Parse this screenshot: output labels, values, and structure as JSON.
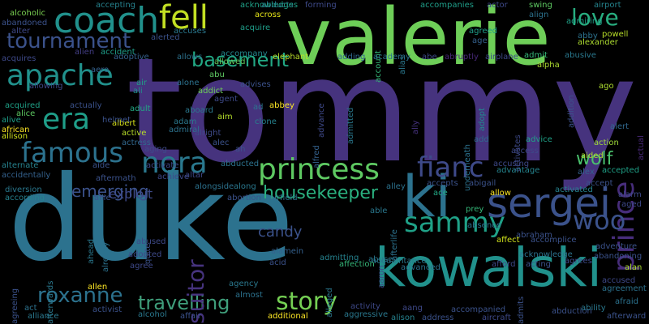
{
  "words": [
    {
      "text": "tommy",
      "color": "#46337e"
    },
    {
      "text": "duke",
      "color": "#2c728e"
    },
    {
      "text": "valerie",
      "color": "#6ece58"
    },
    {
      "text": "kowalski",
      "color": "#21918c"
    },
    {
      "text": "ki",
      "color": "#2c728e"
    },
    {
      "text": "sergei",
      "color": "#3b528b"
    },
    {
      "text": "coach",
      "color": "#21918c"
    },
    {
      "text": "fell",
      "color": "#c2df23"
    },
    {
      "text": "prince",
      "color": "#472d7b"
    },
    {
      "text": "princess",
      "color": "#5ec962"
    },
    {
      "text": "nora",
      "color": "#2a788e"
    },
    {
      "text": "fianc",
      "color": "#3e4a89"
    },
    {
      "text": "apache",
      "color": "#21918c"
    },
    {
      "text": "era",
      "color": "#1f9e89"
    },
    {
      "text": "famous",
      "color": "#2c728e"
    },
    {
      "text": "sammy",
      "color": "#1fa187"
    },
    {
      "text": "woo",
      "color": "#3b528b"
    },
    {
      "text": "tournament",
      "color": "#3b528b"
    },
    {
      "text": "love",
      "color": "#28ae80"
    },
    {
      "text": "basement",
      "color": "#22a884"
    },
    {
      "text": "roxanne",
      "color": "#2c728e"
    },
    {
      "text": "travelling",
      "color": "#3f9e7b"
    },
    {
      "text": "story",
      "color": "#75d054"
    },
    {
      "text": "suitor",
      "color": "#46337e"
    },
    {
      "text": "housekeeper",
      "color": "#2ab07f"
    },
    {
      "text": "wolf",
      "color": "#4ac16d"
    },
    {
      "text": "emerging",
      "color": "#3b528b"
    },
    {
      "text": "exploit",
      "color": "#3e4a89"
    },
    {
      "text": "candy",
      "color": "#3b528b"
    },
    {
      "text": "alcoholic",
      "color": "#7ad151"
    },
    {
      "text": "alien",
      "color": "#433e85"
    },
    {
      "text": "aero",
      "color": "#34618d"
    },
    {
      "text": "abducts",
      "color": "#2c728e"
    },
    {
      "text": "abandoned",
      "color": "#3b528b"
    },
    {
      "text": "alter",
      "color": "#3e4989"
    },
    {
      "text": "accepting",
      "color": "#26828e"
    },
    {
      "text": "acknowledges",
      "color": "#1fa187"
    },
    {
      "text": "forming",
      "color": "#3e4a89"
    },
    {
      "text": "across",
      "color": "#e5e419"
    },
    {
      "text": "account",
      "color": "#35b779"
    },
    {
      "text": "alias",
      "color": "#2a788e"
    },
    {
      "text": "accompanies",
      "color": "#1f9e89"
    },
    {
      "text": "actor",
      "color": "#3e4989"
    },
    {
      "text": "swing",
      "color": "#5ec962"
    },
    {
      "text": "align",
      "color": "#2c728e"
    },
    {
      "text": "airport",
      "color": "#25848e"
    },
    {
      "text": "admiring",
      "color": "#1fa187"
    },
    {
      "text": "powell",
      "color": "#b8de29"
    },
    {
      "text": "alexander",
      "color": "#addc30"
    },
    {
      "text": "abby",
      "color": "#2c728e"
    },
    {
      "text": "agreed",
      "color": "#1f9e89"
    },
    {
      "text": "age",
      "color": "#34618d"
    },
    {
      "text": "accuses",
      "color": "#2a788e"
    },
    {
      "text": "alerted",
      "color": "#3b528b"
    },
    {
      "text": "acquire",
      "color": "#1f9e89"
    },
    {
      "text": "allowed",
      "color": "#63cb5f"
    },
    {
      "text": "allows",
      "color": "#2c728e"
    },
    {
      "text": "accompany",
      "color": "#23898e"
    },
    {
      "text": "elephant",
      "color": "#b8de29"
    },
    {
      "text": "adding",
      "color": "#31688e"
    },
    {
      "text": "academy",
      "color": "#2c728e"
    },
    {
      "text": "abe",
      "color": "#3e4989"
    },
    {
      "text": "abruptly",
      "color": "#482878"
    },
    {
      "text": "airplane",
      "color": "#3e4989"
    },
    {
      "text": "admit",
      "color": "#35b779"
    },
    {
      "text": "abusive",
      "color": "#2a788e"
    },
    {
      "text": "alpha",
      "color": "#addc30"
    },
    {
      "text": "accident",
      "color": "#1f9e89"
    },
    {
      "text": "adoptive",
      "color": "#34618d"
    },
    {
      "text": "acquires",
      "color": "#3e4989"
    },
    {
      "text": "abu",
      "color": "#5ec962"
    },
    {
      "text": "addict",
      "color": "#6ece58"
    },
    {
      "text": "alone",
      "color": "#2c728e"
    },
    {
      "text": "advises",
      "color": "#3b528b"
    },
    {
      "text": "advance",
      "color": "#3e4989"
    },
    {
      "text": "admitted",
      "color": "#2a788e"
    },
    {
      "text": "ally",
      "color": "#46337e"
    },
    {
      "text": "adopt",
      "color": "#23898e"
    },
    {
      "text": "addition",
      "color": "#3b528b"
    },
    {
      "text": "ago",
      "color": "#addc30"
    },
    {
      "text": "actual",
      "color": "#482878"
    },
    {
      "text": "alert",
      "color": "#31688e"
    },
    {
      "text": "air",
      "color": "#1fa187"
    },
    {
      "text": "ali",
      "color": "#21918c"
    },
    {
      "text": "agent",
      "color": "#3e4a89"
    },
    {
      "text": "allowing",
      "color": "#3e4989"
    },
    {
      "text": "acquired",
      "color": "#1fa187"
    },
    {
      "text": "actually",
      "color": "#3b528b"
    },
    {
      "text": "adult",
      "color": "#22a884"
    },
    {
      "text": "aboard",
      "color": "#2a788e"
    },
    {
      "text": "abbey",
      "color": "#fde725"
    },
    {
      "text": "ad",
      "color": "#2c728e"
    },
    {
      "text": "alfred",
      "color": "#34618d"
    },
    {
      "text": "underneath",
      "color": "#2c728e"
    },
    {
      "text": "activates",
      "color": "#3e4a89"
    },
    {
      "text": "action",
      "color": "#a0da39"
    },
    {
      "text": "advice",
      "color": "#1fa187"
    },
    {
      "text": "aided",
      "color": "#addc30"
    },
    {
      "text": "alice",
      "color": "#5ec962"
    },
    {
      "text": "alive",
      "color": "#1f9e89"
    },
    {
      "text": "albert",
      "color": "#d8e219"
    },
    {
      "text": "adam",
      "color": "#2a788e"
    },
    {
      "text": "aim",
      "color": "#b5de2b"
    },
    {
      "text": "clone",
      "color": "#26828e"
    },
    {
      "text": "african",
      "color": "#fde725"
    },
    {
      "text": "allison",
      "color": "#d0e11c"
    },
    {
      "text": "active",
      "color": "#b8de29"
    },
    {
      "text": "actress",
      "color": "#31688e"
    },
    {
      "text": "admiral",
      "color": "#2c728e"
    },
    {
      "text": "alright",
      "color": "#3e4a89"
    },
    {
      "text": "alec",
      "color": "#3b528b"
    },
    {
      "text": "add",
      "color": "#31688e"
    },
    {
      "text": "access",
      "color": "#3e4989"
    },
    {
      "text": "alex",
      "color": "#34618d"
    },
    {
      "text": "accepted",
      "color": "#1fa187"
    },
    {
      "text": "accept",
      "color": "#3b528b"
    },
    {
      "text": "alarm",
      "color": "#3e4989"
    },
    {
      "text": "aged",
      "color": "#3e4989"
    },
    {
      "text": "aging",
      "color": "#3e4a89"
    },
    {
      "text": "ah",
      "color": "#3b528b"
    },
    {
      "text": "alternate",
      "color": "#26828e"
    },
    {
      "text": "aide",
      "color": "#3b528b"
    },
    {
      "text": "activate",
      "color": "#3e4989"
    },
    {
      "text": "abducted",
      "color": "#2c728e"
    },
    {
      "text": "accusing",
      "color": "#3e4989"
    },
    {
      "text": "abigail",
      "color": "#3b528b"
    },
    {
      "text": "advantage",
      "color": "#25848e"
    },
    {
      "text": "activated",
      "color": "#26828e"
    },
    {
      "text": "accidentally",
      "color": "#34618d"
    },
    {
      "text": "diversion",
      "color": "#2a788e"
    },
    {
      "text": "according",
      "color": "#26828e"
    },
    {
      "text": "aftermath",
      "color": "#3b528b"
    },
    {
      "text": "achieve",
      "color": "#3e4989"
    },
    {
      "text": "altar",
      "color": "#3e4989"
    },
    {
      "text": "alongside",
      "color": "#2c728e"
    },
    {
      "text": "along",
      "color": "#2a788e"
    },
    {
      "text": "alley",
      "color": "#2c728e"
    },
    {
      "text": "accepts",
      "color": "#3b528b"
    },
    {
      "text": "ace",
      "color": "#22a884"
    },
    {
      "text": "allow",
      "color": "#fde725"
    },
    {
      "text": "allie",
      "color": "#3b528b"
    },
    {
      "text": "abortion",
      "color": "#3b528b"
    },
    {
      "text": "airfield",
      "color": "#2c728e"
    },
    {
      "text": "able",
      "color": "#2a788e"
    },
    {
      "text": "afterlife",
      "color": "#2c728e"
    },
    {
      "text": "prey",
      "color": "#35b779"
    },
    {
      "text": "absence",
      "color": "#2c728e"
    },
    {
      "text": "abraham",
      "color": "#3b528b"
    },
    {
      "text": "affect",
      "color": "#d0e11c"
    },
    {
      "text": "accomplice",
      "color": "#3b528b"
    },
    {
      "text": "adventure",
      "color": "#3b528b"
    },
    {
      "text": "ahead",
      "color": "#2a788e"
    },
    {
      "text": "already",
      "color": "#2c728e"
    },
    {
      "text": "quite",
      "color": "#3b528b"
    },
    {
      "text": "abused",
      "color": "#3e4a89"
    },
    {
      "text": "alamein",
      "color": "#34618d"
    },
    {
      "text": "aaron",
      "color": "#3e4989"
    },
    {
      "text": "abuse",
      "color": "#2a788e"
    },
    {
      "text": "acknowledge",
      "color": "#2c728e"
    },
    {
      "text": "abandoning",
      "color": "#3b528b"
    },
    {
      "text": "adopted",
      "color": "#3e4989"
    },
    {
      "text": "admitting",
      "color": "#26828e"
    },
    {
      "text": "acquaintance",
      "color": "#2a788e"
    },
    {
      "text": "acting",
      "color": "#3b528b"
    },
    {
      "text": "agrees",
      "color": "#3e4989"
    },
    {
      "text": "alan",
      "color": "#addc30"
    },
    {
      "text": "agree",
      "color": "#3e4989"
    },
    {
      "text": "acid",
      "color": "#3b528b"
    },
    {
      "text": "affection",
      "color": "#35b779"
    },
    {
      "text": "advanced",
      "color": "#2c728e"
    },
    {
      "text": "afford",
      "color": "#3e4a89"
    },
    {
      "text": "accused",
      "color": "#3e4989"
    },
    {
      "text": "agreement",
      "color": "#2c728e"
    },
    {
      "text": "agreeing",
      "color": "#3b528b"
    },
    {
      "text": "afterwards",
      "color": "#2a788e"
    },
    {
      "text": "allen",
      "color": "#fde725"
    },
    {
      "text": "agency",
      "color": "#2a788e"
    },
    {
      "text": "almost",
      "color": "#2c728e"
    },
    {
      "text": "admits",
      "color": "#3b528b"
    },
    {
      "text": "afraid",
      "color": "#2c728e"
    },
    {
      "text": "act",
      "color": "#2c728e"
    },
    {
      "text": "activist",
      "color": "#3b528b"
    },
    {
      "text": "alliance",
      "color": "#2a788e"
    },
    {
      "text": "alcohol",
      "color": "#2a788e"
    },
    {
      "text": "affair",
      "color": "#3b528b"
    },
    {
      "text": "additional",
      "color": "#fde725"
    },
    {
      "text": "activity",
      "color": "#3e4989"
    },
    {
      "text": "aggressive",
      "color": "#2a788e"
    },
    {
      "text": "aang",
      "color": "#3e4989"
    },
    {
      "text": "alison",
      "color": "#26828e"
    },
    {
      "text": "address",
      "color": "#3b528b"
    },
    {
      "text": "accompanied",
      "color": "#3b528b"
    },
    {
      "text": "aircraft",
      "color": "#3e4989"
    },
    {
      "text": "abduction",
      "color": "#3b528b"
    },
    {
      "text": "ability",
      "color": "#2a788e"
    },
    {
      "text": "afterward",
      "color": "#3b528b"
    },
    {
      "text": "alleged",
      "color": "#2a788e"
    },
    {
      "text": "helmet",
      "color": "#3b528b"
    }
  ]
}
